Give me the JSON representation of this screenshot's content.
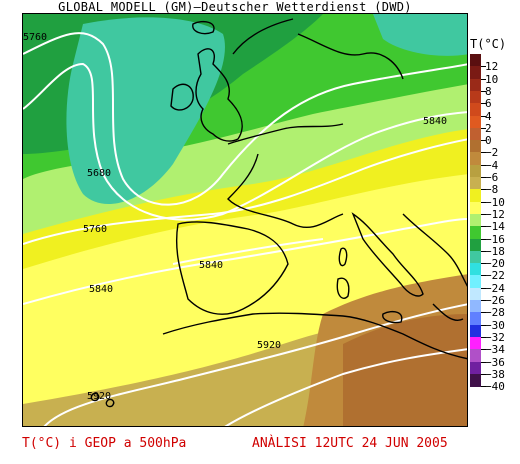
{
  "header": {
    "title": "GLOBAL MODELL (GM)–Deutscher Wetterdienst (DWD)"
  },
  "legend": {
    "title": "T(°C)",
    "entries": [
      {
        "label": "12",
        "color": "#5a0f10"
      },
      {
        "label": "10",
        "color": "#7a1a14"
      },
      {
        "label": "8",
        "color": "#9a2a18"
      },
      {
        "label": "6",
        "color": "#b83a1a"
      },
      {
        "label": "4",
        "color": "#d04a1c"
      },
      {
        "label": "2",
        "color": "#e05a20"
      },
      {
        "label": "0",
        "color": "#c06030"
      },
      {
        "label": "−2",
        "color": "#b07030"
      },
      {
        "label": "−4",
        "color": "#c08a3c"
      },
      {
        "label": "−6",
        "color": "#b8a040"
      },
      {
        "label": "−8",
        "color": "#c8b050"
      },
      {
        "label": "−10",
        "color": "#f0f020"
      },
      {
        "label": "−12",
        "color": "#ffff60"
      },
      {
        "label": "−14",
        "color": "#b0f070"
      },
      {
        "label": "−16",
        "color": "#40c830"
      },
      {
        "label": "−18",
        "color": "#20a040"
      },
      {
        "label": "−20",
        "color": "#40c8a0"
      },
      {
        "label": "−22",
        "color": "#30e0e0"
      },
      {
        "label": "−24",
        "color": "#70f0ff"
      },
      {
        "label": "−26",
        "color": "#c0e8ff"
      },
      {
        "label": "−28",
        "color": "#90b8ff"
      },
      {
        "label": "−30",
        "color": "#6080ff"
      },
      {
        "label": "−32",
        "color": "#2030e0"
      },
      {
        "label": "−34",
        "color": "#ff20ff"
      },
      {
        "label": "−36",
        "color": "#b050c8"
      },
      {
        "label": "−38",
        "color": "#7020a0"
      },
      {
        "label": "−40",
        "color": "#40104a"
      }
    ]
  },
  "contour_labels": [
    "5760",
    "5840",
    "5680",
    "5760",
    "5840",
    "5840",
    "5920",
    "5920"
  ],
  "footer": {
    "left": "T(°C) i GEOP a 500hPa",
    "right": "ANÀLISI 12UTC 24 JUN 2005"
  },
  "colors": {
    "footer_text": "#d00000",
    "contour_line": "#ffffff",
    "coastline": "#000000"
  }
}
